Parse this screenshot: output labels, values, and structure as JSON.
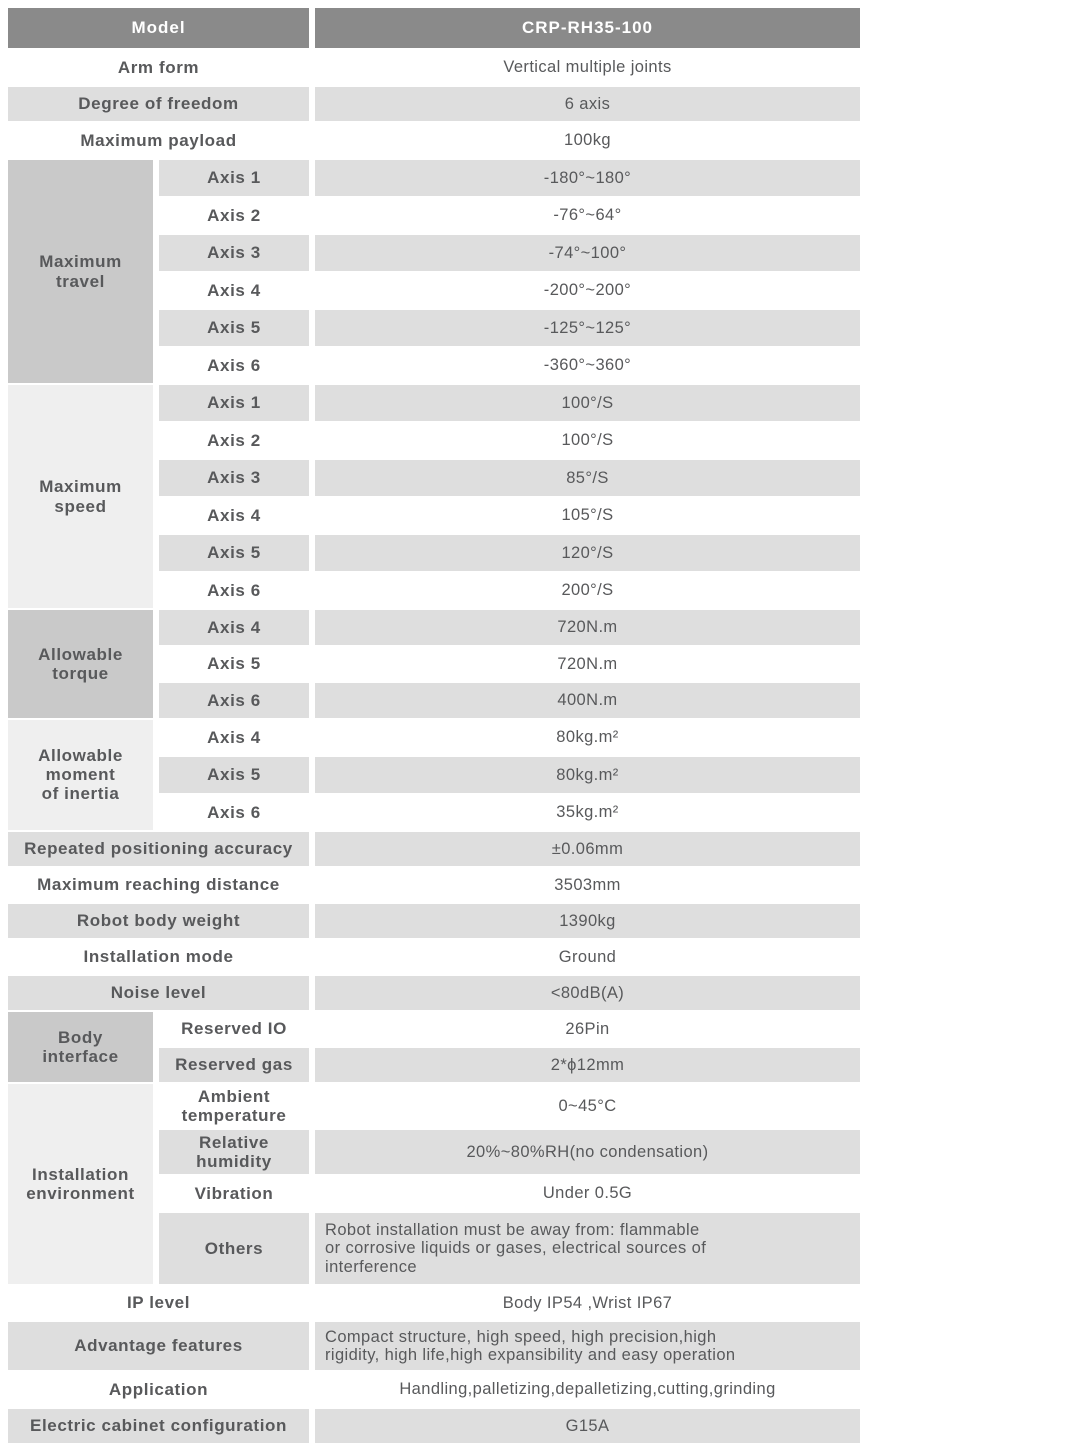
{
  "header": {
    "label": "Model",
    "value": "CRP-RH35-100"
  },
  "top_rows": [
    {
      "label": "Arm form",
      "value": "Vertical multiple joints"
    },
    {
      "label": "Degree of freedom",
      "value": "6 axis"
    },
    {
      "label": "Maximum payload",
      "value": "100kg"
    }
  ],
  "groups": [
    {
      "label": "Maximum\ntravel",
      "rows": [
        {
          "label": "Axis 1",
          "value": "-180°~180°"
        },
        {
          "label": "Axis 2",
          "value": "-76°~64°"
        },
        {
          "label": "Axis 3",
          "value": "-74°~100°"
        },
        {
          "label": "Axis 4",
          "value": "-200°~200°"
        },
        {
          "label": "Axis 5",
          "value": "-125°~125°"
        },
        {
          "label": "Axis 6",
          "value": "-360°~360°"
        }
      ]
    },
    {
      "label": "Maximum\nspeed",
      "rows": [
        {
          "label": "Axis 1",
          "value": "100°/S"
        },
        {
          "label": "Axis 2",
          "value": "100°/S"
        },
        {
          "label": "Axis 3",
          "value": "85°/S"
        },
        {
          "label": "Axis 4",
          "value": "105°/S"
        },
        {
          "label": "Axis 5",
          "value": "120°/S"
        },
        {
          "label": "Axis 6",
          "value": "200°/S"
        }
      ]
    },
    {
      "label": "Allowable\ntorque",
      "rows": [
        {
          "label": "Axis 4",
          "value": "720N.m"
        },
        {
          "label": "Axis 5",
          "value": "720N.m"
        },
        {
          "label": "Axis 6",
          "value": "400N.m"
        }
      ]
    },
    {
      "label": "Allowable\nmoment\nof inertia",
      "rows": [
        {
          "label": "Axis 4",
          "value": "80kg.m²"
        },
        {
          "label": "Axis 5",
          "value": "80kg.m²"
        },
        {
          "label": "Axis 6",
          "value": "35kg.m²"
        }
      ]
    }
  ],
  "mid_rows": [
    {
      "label": "Repeated positioning accuracy",
      "value": "±0.06mm"
    },
    {
      "label": "Maximum reaching distance",
      "value": "3503mm"
    },
    {
      "label": "Robot body weight",
      "value": "1390kg"
    },
    {
      "label": "Installation mode",
      "value": "Ground"
    },
    {
      "label": "Noise level",
      "value": "<80dB(A)"
    }
  ],
  "groups2": [
    {
      "label": "Body\ninterface",
      "rows": [
        {
          "label": "Reserved IO",
          "value": "26Pin"
        },
        {
          "label": "Reserved gas",
          "value": "2*ϕ12mm"
        }
      ]
    },
    {
      "label": "Installation\nenvironment",
      "rows": [
        {
          "label": "Ambient\ntemperature",
          "value": "0~45°C"
        },
        {
          "label": "Relative\nhumidity",
          "value": "20%~80%RH(no condensation)"
        },
        {
          "label": "Vibration",
          "value": "Under 0.5G"
        },
        {
          "label": "Others",
          "value": "Robot installation must be away from: flammable\nor corrosive liquids or gases, electrical sources of\ninterference"
        }
      ]
    }
  ],
  "bottom_rows": [
    {
      "label": "IP level",
      "value": "Body IP54 ,Wrist IP67"
    },
    {
      "label": "Advantage features",
      "value": "Compact structure, high speed, high precision,high\nrigidity, high life,high expansibility and easy operation"
    },
    {
      "label": "Application",
      "value": "Handling,palletizing,depalletizing,cutting,grinding"
    },
    {
      "label": "Electric cabinet configuration",
      "value": "G15A"
    }
  ],
  "colors": {
    "header_bg": "#8a8a8a",
    "header_text": "#ffffff",
    "stripe_gray": "#dedede",
    "group_dark": "#c9c9c9",
    "group_light": "#efefef",
    "text": "#58595b",
    "page_bg": "#ffffff"
  }
}
